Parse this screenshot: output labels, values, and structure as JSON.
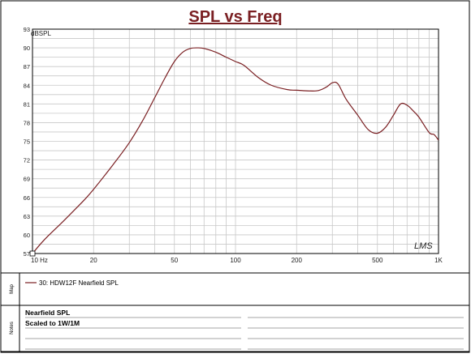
{
  "window": {
    "title": "SPL vs Freq"
  },
  "legend": {
    "side_label": "Map",
    "entries": [
      {
        "label": "30: HDW12F Nearfield SPL",
        "color": "#7a1f22"
      }
    ]
  },
  "notes": {
    "side_label": "Notes",
    "lines": [
      "Nearfield SPL",
      "Scaled to 1W/1M"
    ]
  },
  "watermark": "LMS",
  "colors": {
    "title": "#7a1f22",
    "curve": "#7a1f22",
    "grid": "#c8c8c8",
    "frame": "#000000"
  },
  "chart_data": {
    "type": "line",
    "title": "SPL vs Freq",
    "ylabel": "dBSPL",
    "xlabel": "",
    "x_scale": "log",
    "xlim": [
      10,
      1000
    ],
    "ylim": [
      57,
      93
    ],
    "y_ticks": [
      57,
      60,
      63,
      66,
      69,
      72,
      75,
      78,
      81,
      84,
      87,
      90,
      93
    ],
    "x_tick_labels": [
      {
        "value": 10,
        "label": "10 Hz"
      },
      {
        "value": 20,
        "label": "20"
      },
      {
        "value": 50,
        "label": "50"
      },
      {
        "value": 100,
        "label": "100"
      },
      {
        "value": 200,
        "label": "200"
      },
      {
        "value": 500,
        "label": "500"
      },
      {
        "value": 1000,
        "label": "1K"
      }
    ],
    "grid": true,
    "series": [
      {
        "name": "30: HDW12F Nearfield SPL",
        "x": [
          10,
          11,
          12,
          14,
          16,
          18,
          20,
          25,
          30,
          35,
          40,
          45,
          50,
          55,
          60,
          65,
          70,
          80,
          90,
          100,
          110,
          130,
          150,
          180,
          200,
          250,
          280,
          300,
          320,
          350,
          400,
          450,
          500,
          550,
          600,
          650,
          700,
          750,
          800,
          900,
          950,
          1000
        ],
        "y": [
          57.0,
          58.6,
          59.9,
          62.0,
          63.9,
          65.6,
          67.3,
          71.3,
          74.8,
          78.4,
          82.0,
          85.2,
          87.8,
          89.3,
          89.9,
          90.0,
          89.9,
          89.3,
          88.5,
          87.8,
          87.2,
          85.2,
          84.0,
          83.3,
          83.2,
          83.1,
          83.7,
          84.4,
          84.2,
          81.8,
          79.2,
          76.9,
          76.3,
          77.3,
          79.2,
          81.0,
          80.8,
          79.9,
          78.9,
          76.4,
          76.1,
          75.2
        ]
      }
    ]
  }
}
